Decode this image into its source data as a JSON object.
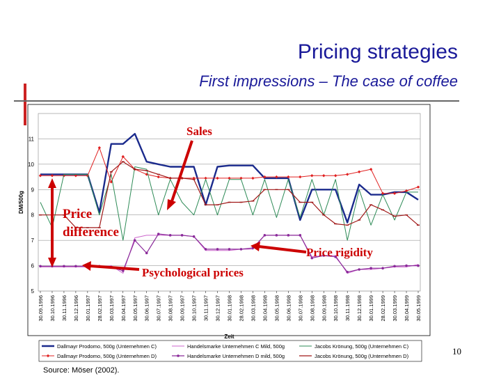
{
  "slide": {
    "title": "Pricing strategies",
    "subtitle": "First impressions – The case of coffee",
    "page_number": "10",
    "source": "Source: Möser (2002)."
  },
  "annotations": {
    "sales": "Sales",
    "price_difference_1": "Price",
    "price_difference_2": "difference",
    "price_rigidity": "Price rigidity",
    "psychological_prices": "Psychological prices"
  },
  "colors": {
    "accent_red": "#cc0000",
    "title_blue": "#1a1a99"
  },
  "chart_data": {
    "type": "line",
    "xlabel": "Zeit",
    "ylabel": "DM/500g",
    "ylim": [
      5,
      12
    ],
    "yticks": [
      5,
      6,
      7,
      8,
      9,
      10,
      11
    ],
    "grid": true,
    "legend_position": "bottom",
    "categories": [
      "30.09.1996",
      "30.10.1996",
      "30.11.1996",
      "30.12.1996",
      "30.01.1997",
      "28.02.1997",
      "30.03.1997",
      "30.04.1997",
      "30.05.1997",
      "30.06.1997",
      "30.07.1997",
      "30.08.1997",
      "30.09.1997",
      "30.10.1997",
      "30.11.1997",
      "30.12.1997",
      "30.01.1998",
      "28.02.1998",
      "30.03.1998",
      "30.04.1998",
      "30.05.1998",
      "30.06.1998",
      "30.07.1998",
      "30.08.1998",
      "30.09.1998",
      "30.10.1998",
      "30.11.1998",
      "30.12.1998",
      "30.01.1999",
      "28.02.1999",
      "30.03.1999",
      "30.04.1999",
      "30.05.1999"
    ],
    "series": [
      {
        "name": "Dallmayr Prodomo, 500g (Unternehmen C)",
        "color": "#1a2a8c",
        "width": 2.4,
        "marker": "none",
        "values": [
          9.6,
          9.6,
          9.6,
          9.6,
          9.6,
          8.1,
          10.8,
          10.8,
          11.2,
          10.1,
          10.0,
          9.9,
          9.9,
          9.9,
          8.4,
          9.9,
          9.95,
          9.95,
          9.95,
          9.45,
          9.45,
          9.45,
          7.8,
          9.0,
          9.0,
          9.0,
          7.7,
          9.2,
          8.8,
          8.8,
          8.9,
          8.9,
          8.6
        ]
      },
      {
        "name": "Dallmayr Prodomo, 500g (Unternehmen D)",
        "color": "#e02020",
        "width": 1,
        "marker": "diamond",
        "values": [
          9.55,
          9.55,
          9.55,
          9.55,
          9.55,
          10.65,
          9.3,
          10.3,
          9.8,
          9.6,
          9.5,
          9.45,
          9.45,
          9.45,
          9.45,
          9.45,
          9.45,
          9.45,
          9.45,
          9.5,
          9.5,
          9.5,
          9.5,
          9.55,
          9.55,
          9.55,
          9.6,
          9.7,
          9.8,
          8.85,
          8.85,
          8.95,
          9.1
        ]
      },
      {
        "name": "Handelsmarke Unternehmen C Mild, 500g",
        "color": "#cc66cc",
        "width": 1,
        "marker": "none",
        "values": [
          5.95,
          5.95,
          5.95,
          5.95,
          5.95,
          5.95,
          6.0,
          5.7,
          7.1,
          7.2,
          7.2,
          7.2,
          7.2,
          7.15,
          6.6,
          6.6,
          6.6,
          6.65,
          6.65,
          7.2,
          7.2,
          7.2,
          7.2,
          6.35,
          6.4,
          6.4,
          5.7,
          5.85,
          5.85,
          5.9,
          5.95,
          5.95,
          6.05
        ]
      },
      {
        "name": "Handelsmarke Unternehmen D mild, 500g",
        "color": "#8a2a9a",
        "width": 1.2,
        "marker": "circle",
        "values": [
          5.98,
          5.98,
          5.98,
          5.98,
          5.98,
          5.98,
          5.95,
          5.8,
          7.0,
          6.5,
          7.25,
          7.2,
          7.2,
          7.15,
          6.65,
          6.65,
          6.65,
          6.65,
          6.7,
          7.2,
          7.2,
          7.2,
          7.2,
          6.3,
          6.4,
          6.35,
          5.75,
          5.85,
          5.9,
          5.9,
          5.98,
          6.0,
          6.0
        ]
      },
      {
        "name": "Jacobs Krönung, 500g (Unternehmen C)",
        "color": "#2e8b57",
        "width": 1,
        "marker": "none",
        "values": [
          8.5,
          7.5,
          9.6,
          9.6,
          9.6,
          8.0,
          9.6,
          7.0,
          9.9,
          9.8,
          8.0,
          9.4,
          8.5,
          8.0,
          9.4,
          8.0,
          9.4,
          9.4,
          8.0,
          9.4,
          7.9,
          9.4,
          7.9,
          9.4,
          8.0,
          9.4,
          7.0,
          9.0,
          7.6,
          8.8,
          7.8,
          8.9,
          8.9
        ]
      },
      {
        "name": "Jacobs Krönung, 500g (Unternehmen D)",
        "color": "#a01818",
        "width": 1.2,
        "marker": "dash",
        "values": [
          8.0,
          8.0,
          8.0,
          7.5,
          7.5,
          7.5,
          9.7,
          10.1,
          9.8,
          9.75,
          9.6,
          9.45,
          9.45,
          9.4,
          8.4,
          8.4,
          8.5,
          8.5,
          8.55,
          9.0,
          9.0,
          9.0,
          8.5,
          8.5,
          8.0,
          7.65,
          7.6,
          7.8,
          8.4,
          8.2,
          7.95,
          8.0,
          7.6
        ]
      }
    ]
  }
}
